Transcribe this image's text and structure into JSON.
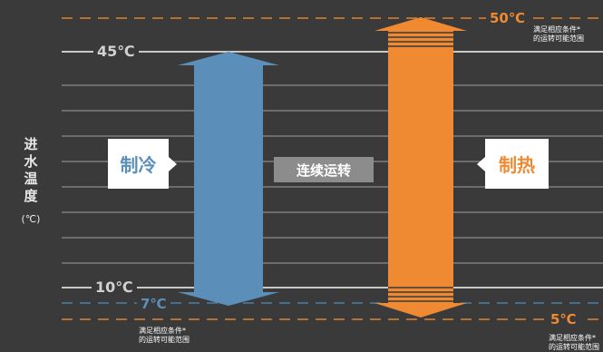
{
  "axis": {
    "label_chars": [
      "进",
      "水",
      "温",
      "度"
    ],
    "unit": "(℃)"
  },
  "ticks": {
    "high": "45℃",
    "low": "10℃"
  },
  "limits": {
    "top": "50℃",
    "cool_bottom": "7℃",
    "heat_bottom": "5℃",
    "top_note_line1": "满足相应条件*",
    "top_note_line2": "的运转可能范围",
    "cool_note_line1": "满足相应条件*",
    "cool_note_line2": "的运转可能范围",
    "heat_note_line1": "满足相应条件*",
    "heat_note_line2": "的运转可能范围"
  },
  "modes": {
    "cool": "制冷",
    "continuous": "连续运转",
    "heat": "制热"
  },
  "colors": {
    "background": "#3a3a3b",
    "cool": "#5b8fb9",
    "heat": "#ef8a33",
    "dashed_blue": "#4a7fa6",
    "dashed_orange": "#e0812e",
    "grid": "#8a8a8a"
  }
}
